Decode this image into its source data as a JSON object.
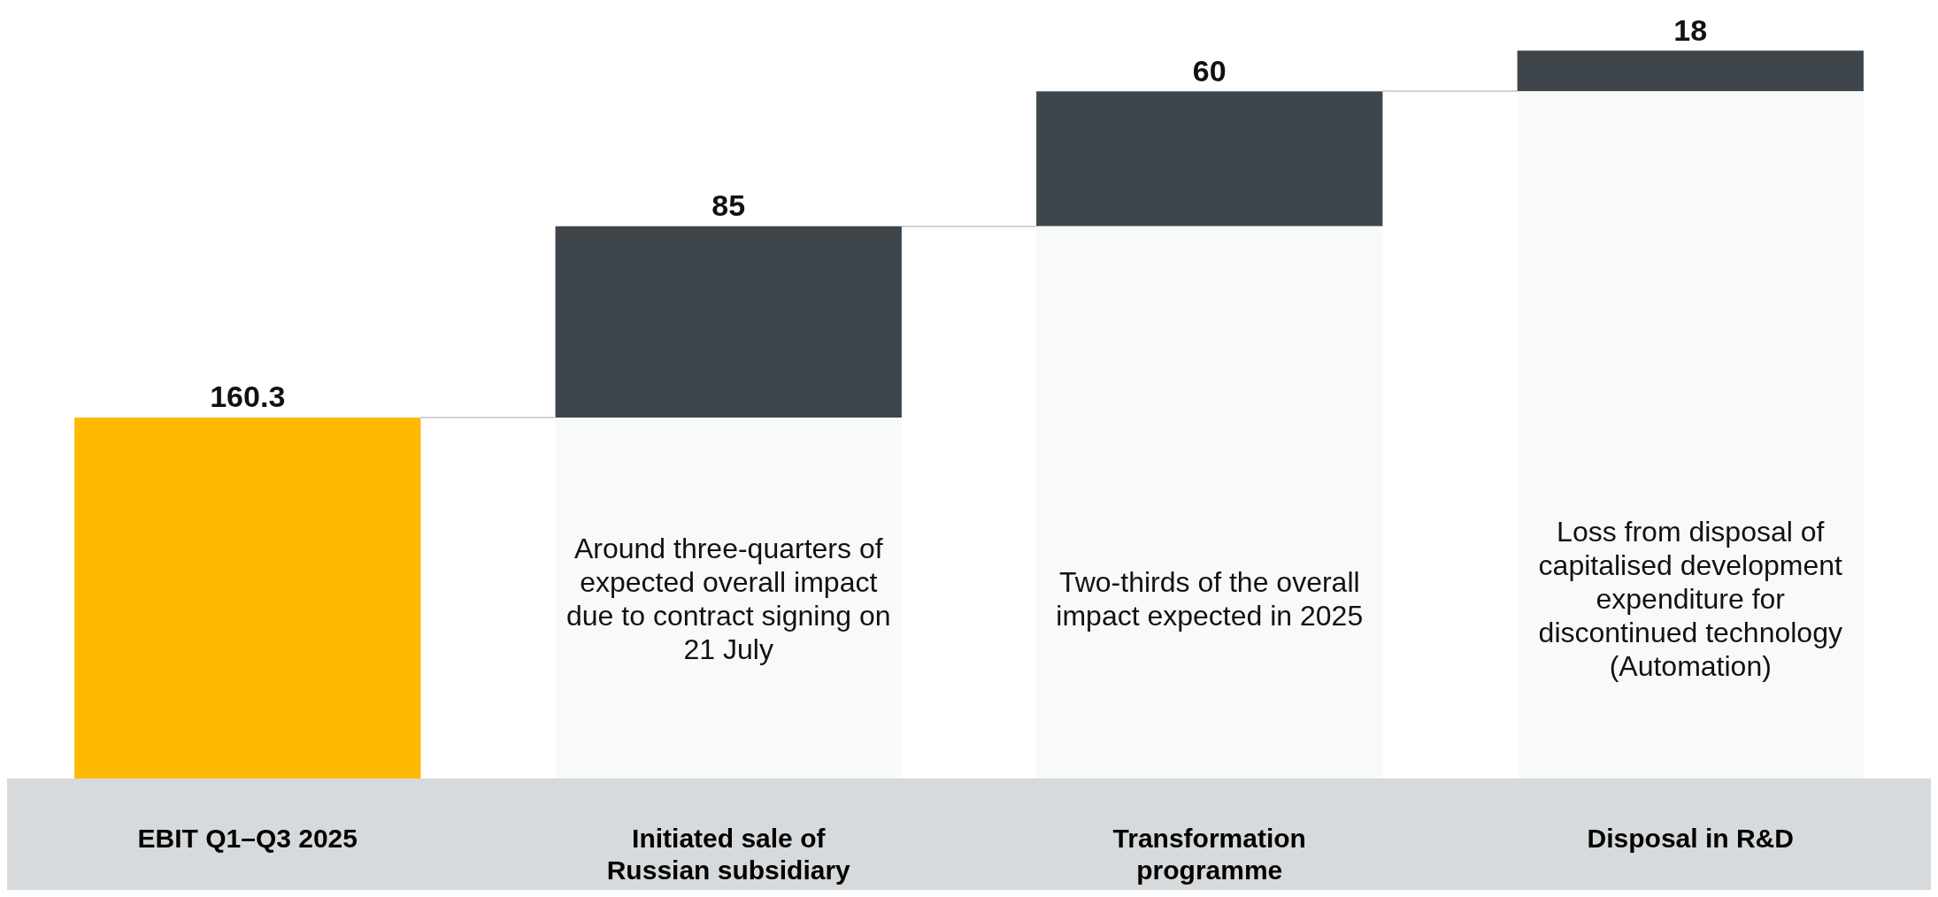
{
  "chart_data": {
    "type": "bar",
    "categories": [
      "EBIT Q1–Q3 2025",
      "Initiated sale of Russian subsidiary",
      "Transformation programme",
      "Disposal in R&D"
    ],
    "stacked": true,
    "series": [
      {
        "color": "#f8f9f9",
        "values": [
          null,
          160.3,
          245.3,
          305.3
        ]
      },
      {
        "colors": [
          "#ffb900",
          "#3e464c",
          "#3e464c",
          "#3e464c"
        ],
        "values": [
          160.3,
          85,
          60,
          18
        ],
        "value_labels": [
          "160.3",
          "85",
          "60",
          "18"
        ]
      }
    ],
    "tick_labels": "x",
    "annotations": [
      "Around three-quarters of expected overall impact due to contract signing on 21 July",
      "Two-thirds of the overall impact expected in 2025",
      "Loss from disposal of capitalised development expenditure for discontinued technology (Automation)"
    ]
  }
}
